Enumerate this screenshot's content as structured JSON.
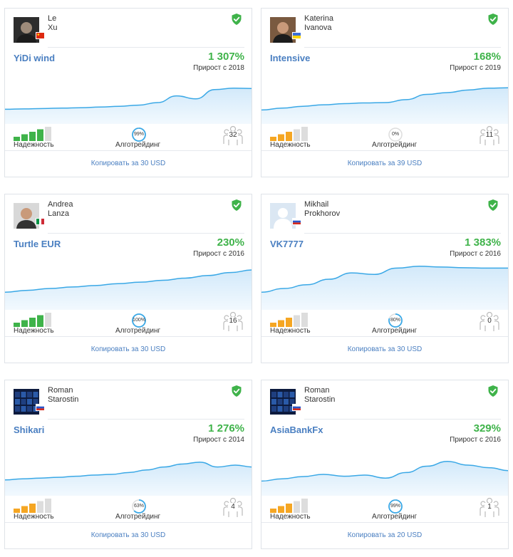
{
  "labels": {
    "reliability": "Надежность",
    "algotrading": "Алготрейдинг"
  },
  "colors": {
    "green": "#3fb34a",
    "orange": "#f5a623",
    "link": "#4a7fc1",
    "chart_line": "#3aa8e6",
    "inactive_bar": "#dddddd"
  },
  "cards": [
    {
      "first_name": "Le",
      "last_name": "Xu",
      "flag": "cn",
      "avatar": "person-photo-dark",
      "signal": "YiDi wind",
      "growth": "1 307%",
      "since": "Прирост с 2018",
      "reliability_level": 4,
      "reliability_color": "green",
      "algo": "99%",
      "algo_fraction": 0.99,
      "subscribers": "32",
      "copy": "Копировать за 30 USD",
      "curve": [
        0.32,
        0.33,
        0.34,
        0.35,
        0.36,
        0.38,
        0.4,
        0.43,
        0.5,
        0.68,
        0.6,
        0.85,
        0.89,
        0.88
      ]
    },
    {
      "first_name": "Katerina",
      "last_name": "Ivanova",
      "flag": "ua",
      "avatar": "person-photo-suit",
      "signal": "Intensive",
      "growth": "168%",
      "since": "Прирост с 2019",
      "reliability_level": 3,
      "reliability_color": "orange",
      "algo": "0%",
      "algo_fraction": 0.0,
      "subscribers": "11",
      "copy": "Копировать за 39 USD",
      "curve": [
        0.3,
        0.35,
        0.4,
        0.44,
        0.47,
        0.49,
        0.5,
        0.58,
        0.72,
        0.77,
        0.84,
        0.89,
        0.9
      ]
    },
    {
      "first_name": "Andrea",
      "last_name": "Lanza",
      "flag": "it",
      "avatar": "person-photo-bald",
      "signal": "Turtle EUR",
      "growth": "230%",
      "since": "Прирост с 2016",
      "reliability_level": 4,
      "reliability_color": "green",
      "algo": "100%",
      "algo_fraction": 1.0,
      "subscribers": "16",
      "copy": "Копировать за 30 USD",
      "curve": [
        0.4,
        0.45,
        0.5,
        0.54,
        0.58,
        0.63,
        0.67,
        0.72,
        0.78,
        0.85,
        0.93,
        1.0
      ]
    },
    {
      "first_name": "Mikhail",
      "last_name": "Prokhorov",
      "flag": "ru",
      "avatar": "default-user-silhouette",
      "signal": "VK7777",
      "growth": "1 383%",
      "since": "Прирост с 2016",
      "reliability_level": 3,
      "reliability_color": "orange",
      "algo": "80%",
      "algo_fraction": 0.8,
      "subscribers": "0",
      "copy": "Копировать за 30 USD",
      "curve": [
        0.4,
        0.5,
        0.6,
        0.75,
        0.92,
        0.88,
        1.05,
        1.1,
        1.08,
        1.06,
        1.05,
        1.05
      ]
    },
    {
      "first_name": "Roman",
      "last_name": "Starostin",
      "flag": "ru",
      "avatar": "trading-screens-image",
      "signal": "Shikari",
      "growth": "1 276%",
      "since": "Прирост с 2014",
      "reliability_level": 3,
      "reliability_color": "orange",
      "algo": "63%",
      "algo_fraction": 0.63,
      "subscribers": "4",
      "copy": "Копировать за 30 USD",
      "curve": [
        0.35,
        0.38,
        0.4,
        0.42,
        0.45,
        0.48,
        0.5,
        0.55,
        0.62,
        0.7,
        0.78,
        0.83,
        0.7,
        0.75,
        0.7
      ]
    },
    {
      "first_name": "Roman",
      "last_name": "Starostin",
      "flag": "ru",
      "avatar": "trading-screens-image",
      "signal": "AsiaBankFx",
      "growth": "329%",
      "since": "Прирост с 2016",
      "reliability_level": 3,
      "reliability_color": "orange",
      "algo": "99%",
      "algo_fraction": 0.99,
      "subscribers": "1",
      "copy": "Копировать за 20 USD",
      "curve": [
        0.32,
        0.38,
        0.44,
        0.5,
        0.45,
        0.48,
        0.4,
        0.55,
        0.72,
        0.85,
        0.75,
        0.68,
        0.6
      ]
    }
  ]
}
